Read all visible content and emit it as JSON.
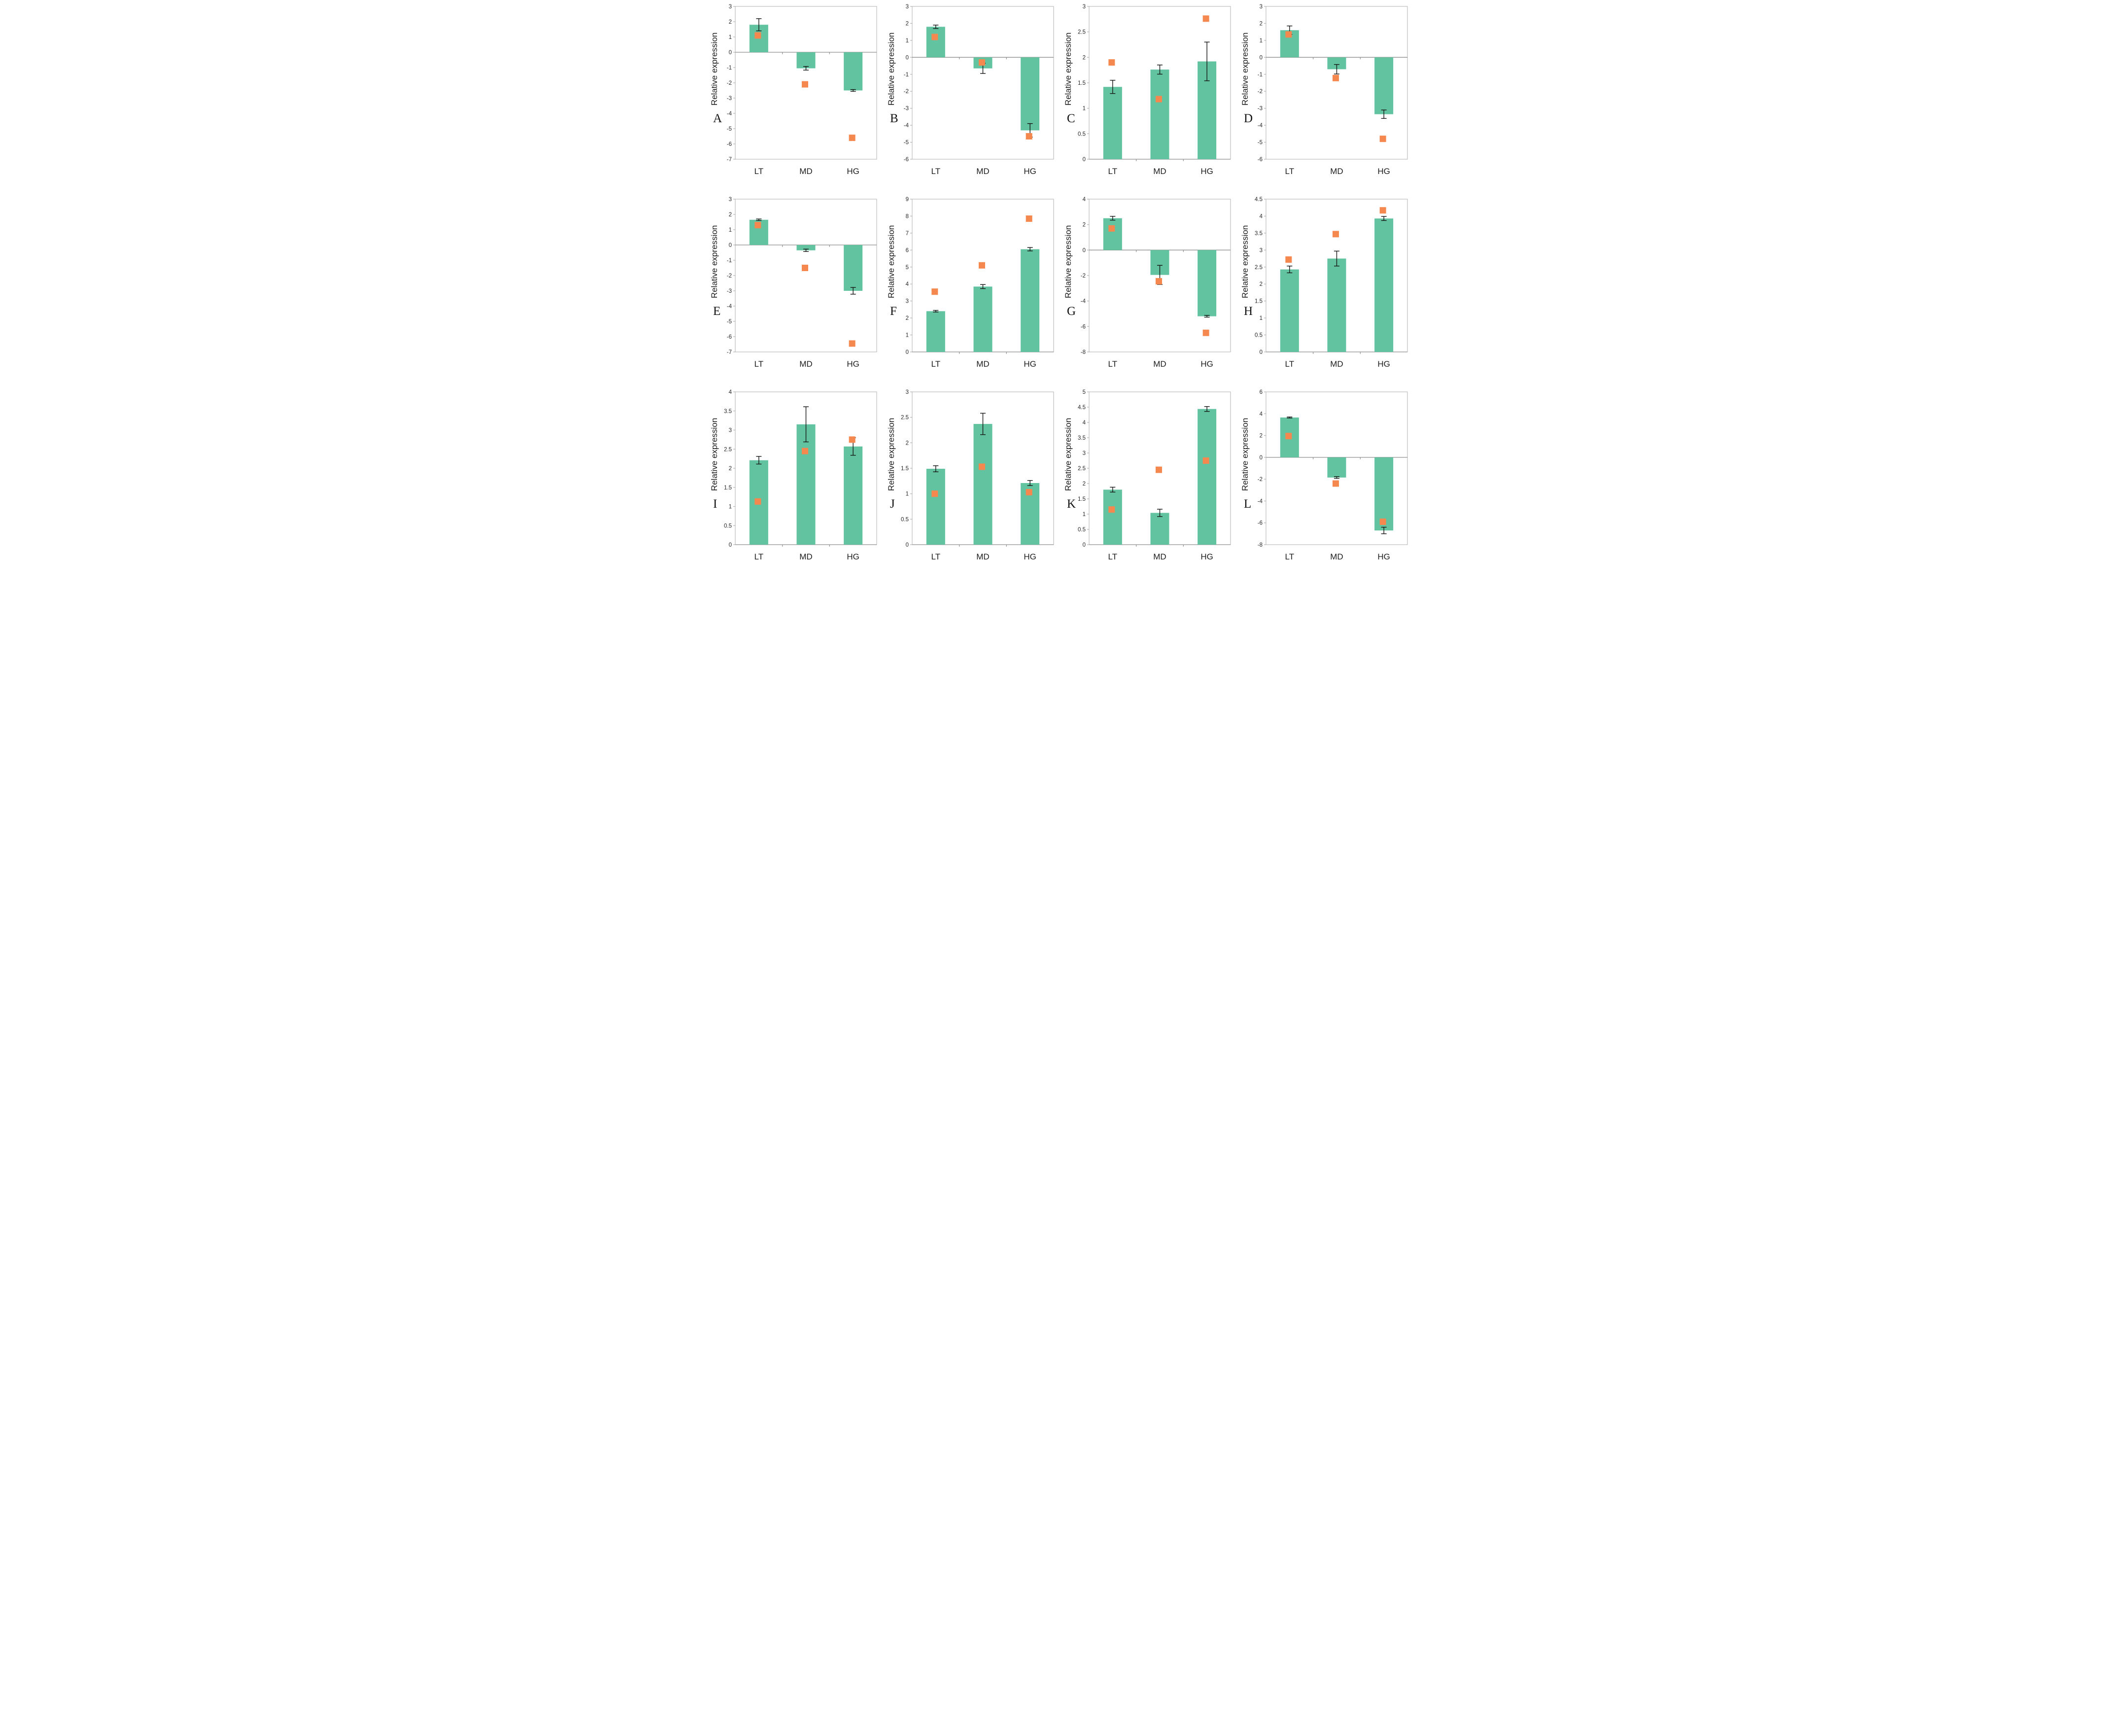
{
  "figure": {
    "ylabel": "Relative expression",
    "categories": [
      "LT",
      "MD",
      "HG"
    ],
    "series_names": {
      "bars": "relative-expression-bar",
      "points": "orange-marker"
    },
    "colors": {
      "bar": "#62c3a0",
      "point": "#f5884f",
      "error": "#151515",
      "axis_border": "#b2b2b2",
      "zero_line": "#8f8f8f",
      "text": "#262626"
    }
  },
  "chart_data": [
    {
      "label": "A",
      "type": "bar",
      "ylabel": "Relative expression",
      "categories": [
        "LT",
        "MD",
        "HG"
      ],
      "ylim": [
        -7,
        3
      ],
      "yticks": [
        3,
        2,
        1,
        0,
        -1,
        -2,
        -3,
        -4,
        -5,
        -6,
        -7
      ],
      "series": [
        {
          "name": "bar",
          "values": [
            1.8,
            -1.05,
            -2.5
          ],
          "errors": [
            0.4,
            0.12,
            0.06
          ]
        },
        {
          "name": "point",
          "values": [
            1.1,
            -2.1,
            -5.6
          ]
        }
      ]
    },
    {
      "label": "B",
      "type": "bar",
      "ylabel": "Relative expression",
      "categories": [
        "LT",
        "MD",
        "HG"
      ],
      "ylim": [
        -6,
        3
      ],
      "yticks": [
        3,
        2,
        1,
        0,
        -1,
        -2,
        -3,
        -4,
        -5,
        -6
      ],
      "series": [
        {
          "name": "bar",
          "values": [
            1.8,
            -0.65,
            -4.3
          ],
          "errors": [
            0.1,
            0.3,
            0.4
          ]
        },
        {
          "name": "point",
          "values": [
            1.2,
            -0.3,
            -4.65
          ]
        }
      ]
    },
    {
      "label": "C",
      "type": "bar",
      "ylabel": "Relative expression",
      "categories": [
        "LT",
        "MD",
        "HG"
      ],
      "ylim": [
        0,
        3
      ],
      "yticks": [
        3,
        2.5,
        2,
        1.5,
        1,
        0.5,
        0
      ],
      "series": [
        {
          "name": "bar",
          "values": [
            1.42,
            1.76,
            1.92
          ],
          "errors": [
            0.13,
            0.09,
            0.38
          ]
        },
        {
          "name": "point",
          "values": [
            1.9,
            1.18,
            2.76
          ]
        }
      ]
    },
    {
      "label": "D",
      "type": "bar",
      "ylabel": "Relative expression",
      "categories": [
        "LT",
        "MD",
        "HG"
      ],
      "ylim": [
        -6,
        3
      ],
      "yticks": [
        3,
        2,
        1,
        0,
        -1,
        -2,
        -3,
        -4,
        -5,
        -6
      ],
      "series": [
        {
          "name": "bar",
          "values": [
            1.6,
            -0.7,
            -3.35
          ],
          "errors": [
            0.25,
            0.28,
            0.25
          ]
        },
        {
          "name": "point",
          "values": [
            1.35,
            -1.22,
            -4.8
          ]
        }
      ]
    },
    {
      "label": "E",
      "type": "bar",
      "ylabel": "Relative expression",
      "categories": [
        "LT",
        "MD",
        "HG"
      ],
      "ylim": [
        -7,
        3
      ],
      "yticks": [
        3,
        2,
        1,
        0,
        -1,
        -2,
        -3,
        -4,
        -5,
        -6,
        -7
      ],
      "series": [
        {
          "name": "bar",
          "values": [
            1.65,
            -0.35,
            -3.0
          ],
          "errors": [
            0.05,
            0.08,
            0.22
          ]
        },
        {
          "name": "point",
          "values": [
            1.3,
            -1.5,
            -6.45
          ]
        }
      ]
    },
    {
      "label": "F",
      "type": "bar",
      "ylabel": "Relative expression",
      "categories": [
        "LT",
        "MD",
        "HG"
      ],
      "ylim": [
        0,
        9
      ],
      "yticks": [
        9,
        8,
        7,
        6,
        5,
        4,
        3,
        2,
        1,
        0
      ],
      "series": [
        {
          "name": "bar",
          "values": [
            2.4,
            3.85,
            6.05
          ],
          "errors": [
            0.05,
            0.12,
            0.1
          ]
        },
        {
          "name": "point",
          "values": [
            3.55,
            5.1,
            7.85
          ]
        }
      ]
    },
    {
      "label": "G",
      "type": "bar",
      "ylabel": "Relative expression",
      "categories": [
        "LT",
        "MD",
        "HG"
      ],
      "ylim": [
        -8,
        4
      ],
      "yticks": [
        4,
        2,
        0,
        -2,
        -4,
        -6,
        -8
      ],
      "series": [
        {
          "name": "bar",
          "values": [
            2.5,
            -1.95,
            -5.2
          ],
          "errors": [
            0.15,
            0.75,
            0.07
          ]
        },
        {
          "name": "point",
          "values": [
            1.7,
            -2.45,
            -6.5
          ]
        }
      ]
    },
    {
      "label": "H",
      "type": "bar",
      "ylabel": "Relative expression",
      "categories": [
        "LT",
        "MD",
        "HG"
      ],
      "ylim": [
        0,
        4.5
      ],
      "yticks": [
        4.5,
        4,
        3.5,
        3,
        2.5,
        2,
        1.5,
        1,
        0.5,
        0
      ],
      "series": [
        {
          "name": "bar",
          "values": [
            2.43,
            2.75,
            3.93
          ],
          "errors": [
            0.1,
            0.22,
            0.06
          ]
        },
        {
          "name": "point",
          "values": [
            2.72,
            3.47,
            4.17
          ]
        }
      ]
    },
    {
      "label": "I",
      "type": "bar",
      "ylabel": "Relative expression",
      "categories": [
        "LT",
        "MD",
        "HG"
      ],
      "ylim": [
        0,
        4
      ],
      "yticks": [
        4,
        3.5,
        3,
        2.5,
        2,
        1.5,
        1,
        0.5,
        0
      ],
      "series": [
        {
          "name": "bar",
          "values": [
            2.21,
            3.15,
            2.57
          ],
          "errors": [
            0.1,
            0.46,
            0.23
          ]
        },
        {
          "name": "point",
          "values": [
            1.13,
            2.45,
            2.75
          ]
        }
      ]
    },
    {
      "label": "J",
      "type": "bar",
      "ylabel": "Relative expression",
      "categories": [
        "LT",
        "MD",
        "HG"
      ],
      "ylim": [
        0,
        3
      ],
      "yticks": [
        3,
        2.5,
        2,
        1.5,
        1,
        0.5,
        0
      ],
      "series": [
        {
          "name": "bar",
          "values": [
            1.49,
            2.37,
            1.21
          ],
          "errors": [
            0.06,
            0.21,
            0.05
          ]
        },
        {
          "name": "point",
          "values": [
            1.0,
            1.53,
            1.03
          ]
        }
      ]
    },
    {
      "label": "K",
      "type": "bar",
      "ylabel": "Relative expression",
      "categories": [
        "LT",
        "MD",
        "HG"
      ],
      "ylim": [
        0,
        5
      ],
      "yticks": [
        5,
        4.5,
        4,
        3.5,
        3,
        2.5,
        2,
        1.5,
        1,
        0.5,
        0
      ],
      "series": [
        {
          "name": "bar",
          "values": [
            1.8,
            1.04,
            4.44
          ],
          "errors": [
            0.08,
            0.12,
            0.08
          ]
        },
        {
          "name": "point",
          "values": [
            1.15,
            2.45,
            2.75
          ]
        }
      ]
    },
    {
      "label": "L",
      "type": "bar",
      "ylabel": "Relative expression",
      "categories": [
        "LT",
        "MD",
        "HG"
      ],
      "ylim": [
        -8,
        6
      ],
      "yticks": [
        6,
        4,
        2,
        0,
        -2,
        -4,
        -6,
        -8
      ],
      "series": [
        {
          "name": "bar",
          "values": [
            3.65,
            -1.85,
            -6.7
          ],
          "errors": [
            0.05,
            0.08,
            0.3
          ]
        },
        {
          "name": "point",
          "values": [
            1.95,
            -2.4,
            -5.9
          ]
        }
      ]
    }
  ]
}
